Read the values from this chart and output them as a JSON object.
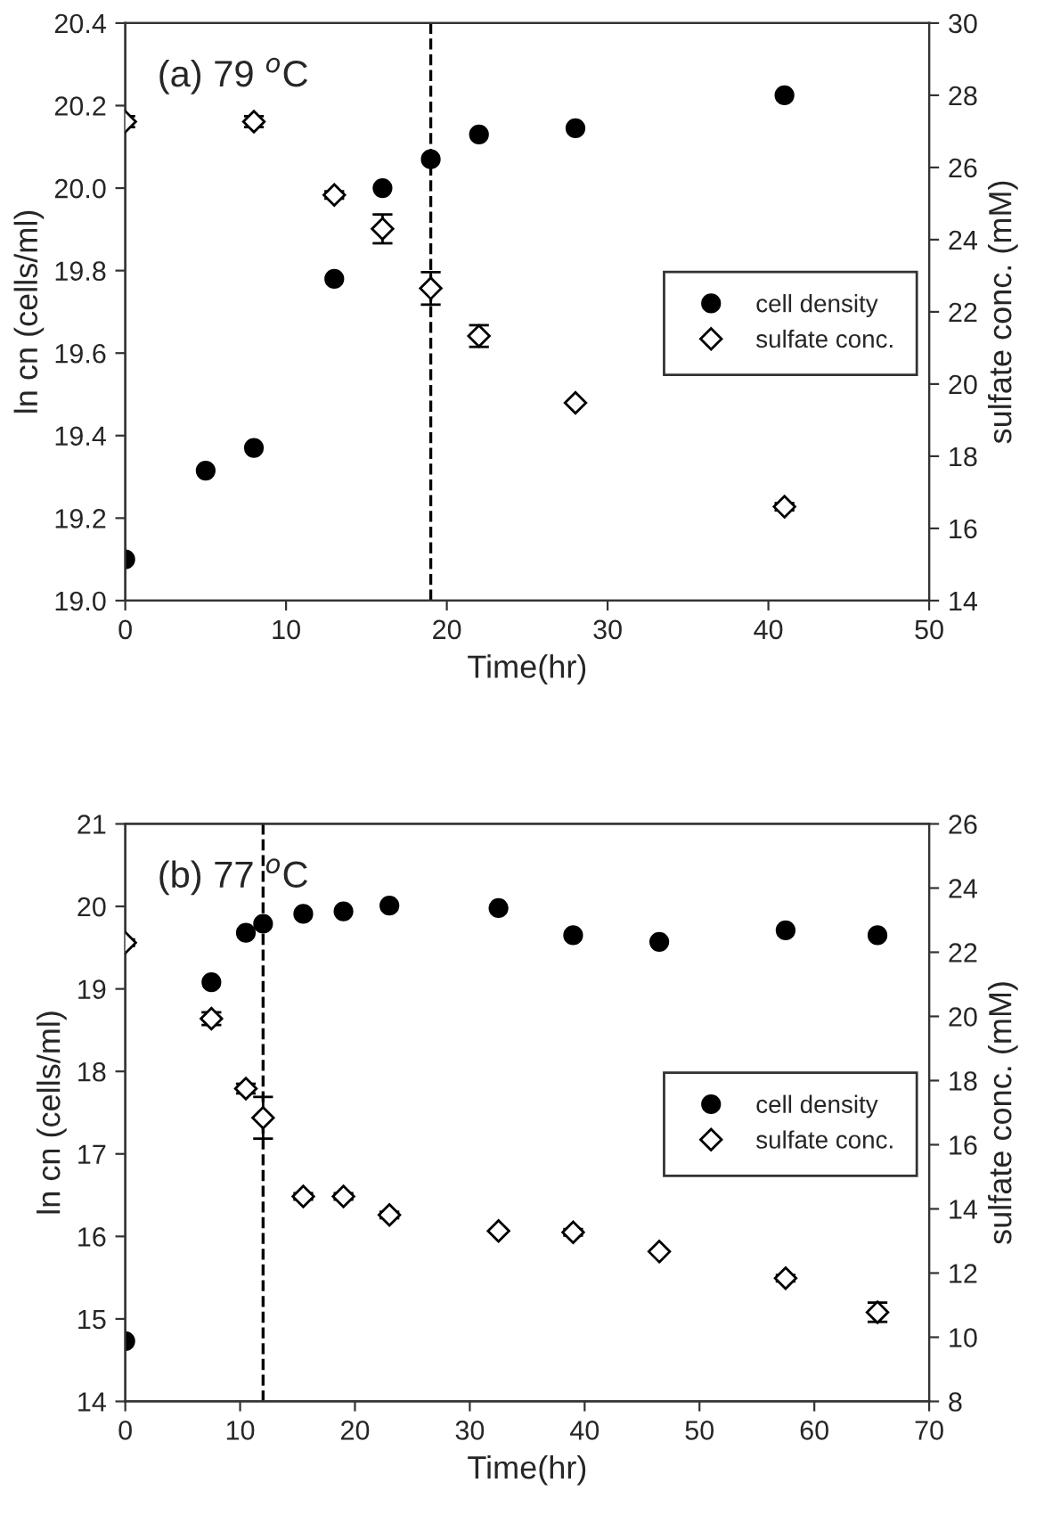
{
  "chart_data": [
    {
      "type": "scatter",
      "xlabel": "Time(hr)",
      "ylabel": "ln cn (cells/ml)",
      "y2label": "sulfate conc. (mM)",
      "annotations": [
        "(a) 79 $^{o}$C"
      ],
      "xlim": [
        0,
        50
      ],
      "xticks": [
        0,
        10,
        20,
        30,
        40,
        50
      ],
      "ylim": [
        19.0,
        20.4
      ],
      "yticks": [
        {
          "value": 19.0,
          "label": "19.0"
        },
        {
          "value": 19.2,
          "label": "19.2"
        },
        {
          "value": 19.4,
          "label": "19.4"
        },
        {
          "value": 19.6,
          "label": "19.6"
        },
        {
          "value": 19.8,
          "label": "19.8"
        },
        {
          "value": 20.0,
          "label": "20.0"
        },
        {
          "value": 20.2,
          "label": "20.2"
        },
        {
          "value": 20.4,
          "label": "20.4"
        }
      ],
      "y2lim": [
        14,
        30
      ],
      "y2ticks": [
        14,
        16,
        18,
        20,
        22,
        24,
        26,
        28,
        30
      ],
      "legend": "right",
      "grid": false,
      "ref_lines": [
        {
          "axis": "x",
          "value": 19,
          "color": "#000000",
          "line_style": "dashed"
        }
      ],
      "series": [
        {
          "name": "cell density",
          "color": "#000000",
          "marker": "circle",
          "x": [
            0,
            5,
            8,
            13,
            16,
            19,
            22,
            28,
            41
          ],
          "values": [
            19.1,
            19.315,
            19.37,
            19.78,
            20.0,
            20.07,
            20.13,
            20.145,
            20.225
          ]
        },
        {
          "name": "sulfate conc.",
          "color": "#000000",
          "marker": "diamond",
          "axis": "y2",
          "x": [
            0,
            8,
            13,
            16,
            19,
            22,
            28,
            41
          ],
          "values": [
            27.27,
            27.27,
            25.24,
            24.3,
            22.65,
            21.33,
            19.48,
            16.6
          ],
          "errors": [
            0.15,
            0.15,
            0.1,
            0.4,
            0.45,
            0.3,
            null,
            0.1
          ]
        }
      ]
    },
    {
      "type": "scatter",
      "xlabel": "Time(hr)",
      "ylabel": "ln cn (cells/ml)",
      "y2label": "sulfate conc. (mM)",
      "annotations": [
        "(b) 77 $^{o}$C"
      ],
      "xlim": [
        0,
        70
      ],
      "xticks": [
        0,
        10,
        20,
        30,
        40,
        50,
        60,
        70
      ],
      "ylim": [
        14,
        21
      ],
      "yticks": [
        14,
        15,
        16,
        17,
        18,
        19,
        20,
        21
      ],
      "y2lim": [
        8,
        26
      ],
      "y2ticks": [
        8,
        10,
        12,
        14,
        16,
        18,
        20,
        22,
        24,
        26
      ],
      "legend": "right",
      "grid": false,
      "ref_lines": [
        {
          "axis": "x",
          "value": 12,
          "color": "#000000",
          "line_style": "dashed"
        }
      ],
      "series": [
        {
          "name": "cell density",
          "color": "#000000",
          "marker": "circle",
          "x": [
            0,
            7.5,
            10.5,
            12,
            15.5,
            19,
            23,
            32.5,
            39,
            46.5,
            57.5,
            65.5
          ],
          "values": [
            14.73,
            19.08,
            19.68,
            19.79,
            19.91,
            19.94,
            20.01,
            19.98,
            19.65,
            19.57,
            19.71,
            19.65
          ]
        },
        {
          "name": "sulfate conc.",
          "color": "#000000",
          "marker": "diamond",
          "axis": "y2",
          "x": [
            0,
            7.5,
            10.5,
            12,
            15.5,
            19,
            23,
            32.5,
            39,
            46.5,
            57.5,
            65.5
          ],
          "values": [
            22.3,
            19.93,
            17.75,
            16.84,
            14.39,
            14.39,
            13.81,
            13.31,
            13.27,
            12.67,
            11.84,
            10.78
          ],
          "errors": [
            0.1,
            0.2,
            0.15,
            0.65,
            0.1,
            0.1,
            0.1,
            null,
            0.1,
            null,
            0.1,
            0.3
          ]
        }
      ]
    }
  ]
}
